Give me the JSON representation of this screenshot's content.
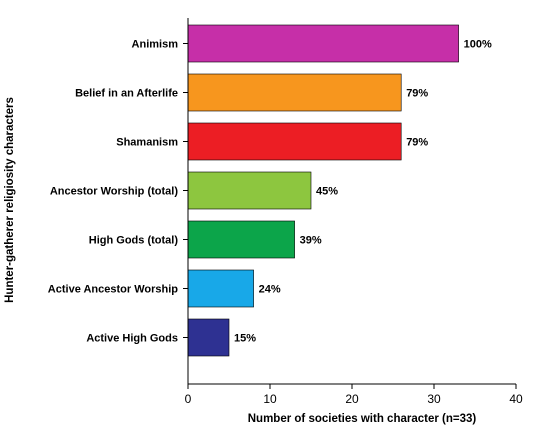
{
  "chart_data": {
    "type": "bar",
    "orientation": "horizontal",
    "xlabel": "Number of societies with character (n=33)",
    "ylabel": "Hunter-gatherer religiosity characters",
    "xlim": [
      0,
      40
    ],
    "xticks": [
      "0",
      "10",
      "20",
      "30",
      "40"
    ],
    "grid": false,
    "legend": "none",
    "bars": [
      {
        "category": "Animism",
        "value": 33,
        "label": "100%",
        "color": "#c62fa8"
      },
      {
        "category": "Belief in an Afterlife",
        "value": 26,
        "label": "79%",
        "color": "#f7961e"
      },
      {
        "category": "Shamanism",
        "value": 26,
        "label": "79%",
        "color": "#ec1e24"
      },
      {
        "category": "Ancestor Worship (total)",
        "value": 15,
        "label": "45%",
        "color": "#8dc63f"
      },
      {
        "category": "High Gods (total)",
        "value": 13,
        "label": "39%",
        "color": "#0ca54a"
      },
      {
        "category": "Active Ancestor Worship",
        "value": 8,
        "label": "24%",
        "color": "#18a8e8"
      },
      {
        "category": "Active High Gods",
        "value": 5,
        "label": "15%",
        "color": "#2e3192"
      }
    ]
  }
}
